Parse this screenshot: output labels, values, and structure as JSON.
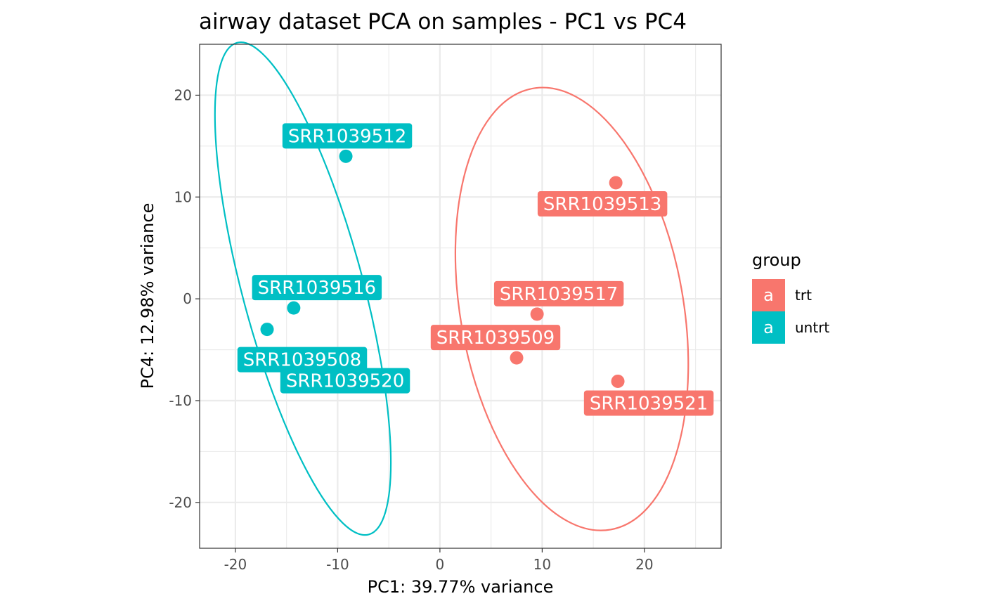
{
  "chart_data": {
    "type": "scatter",
    "title": "airway dataset PCA on samples - PC1 vs PC4",
    "xlabel": "PC1: 39.77% variance",
    "ylabel": "PC4: 12.98% variance",
    "xlim": [
      -23.5,
      27.5
    ],
    "ylim": [
      -24.5,
      25
    ],
    "x_ticks": [
      -20,
      -10,
      0,
      10,
      20
    ],
    "y_ticks": [
      -20,
      -10,
      0,
      10,
      20
    ],
    "x_tick_labels": [
      "-20",
      "-10",
      "0",
      "10",
      "20"
    ],
    "y_tick_labels": [
      "-20",
      "-10",
      "0",
      "10",
      "20"
    ],
    "grid": true,
    "legend": {
      "title": "group",
      "position": "right",
      "key_glyph": "a",
      "entries": [
        {
          "name": "trt",
          "color": "#F8766D"
        },
        {
          "name": "untrt",
          "color": "#00BFC4"
        }
      ]
    },
    "series": [
      {
        "name": "trt",
        "color": "#F8766D",
        "points": [
          {
            "label": "SRR1039513",
            "x": 17.2,
            "y": 11.4
          },
          {
            "label": "SRR1039517",
            "x": 9.5,
            "y": -1.5
          },
          {
            "label": "SRR1039509",
            "x": 7.5,
            "y": -5.8
          },
          {
            "label": "SRR1039521",
            "x": 17.4,
            "y": -8.1
          }
        ],
        "ellipse": {
          "cx": 12.9,
          "cy": -1.0,
          "rx": 10.9,
          "ry": 22.0,
          "angle_deg": -10
        }
      },
      {
        "name": "untrt",
        "color": "#00BFC4",
        "points": [
          {
            "label": "SRR1039512",
            "x": -9.2,
            "y": 14.0
          },
          {
            "label": "SRR1039516",
            "x": -14.3,
            "y": -0.9
          },
          {
            "label": "SRR1039508",
            "x": -16.9,
            "y": -3.0
          },
          {
            "label": "SRR1039520",
            "x": -11.4,
            "y": -5.9
          }
        ],
        "ellipse": {
          "cx": -13.4,
          "cy": 1.0,
          "rx": 5.9,
          "ry": 25.0,
          "angle_deg": -15
        }
      }
    ]
  }
}
